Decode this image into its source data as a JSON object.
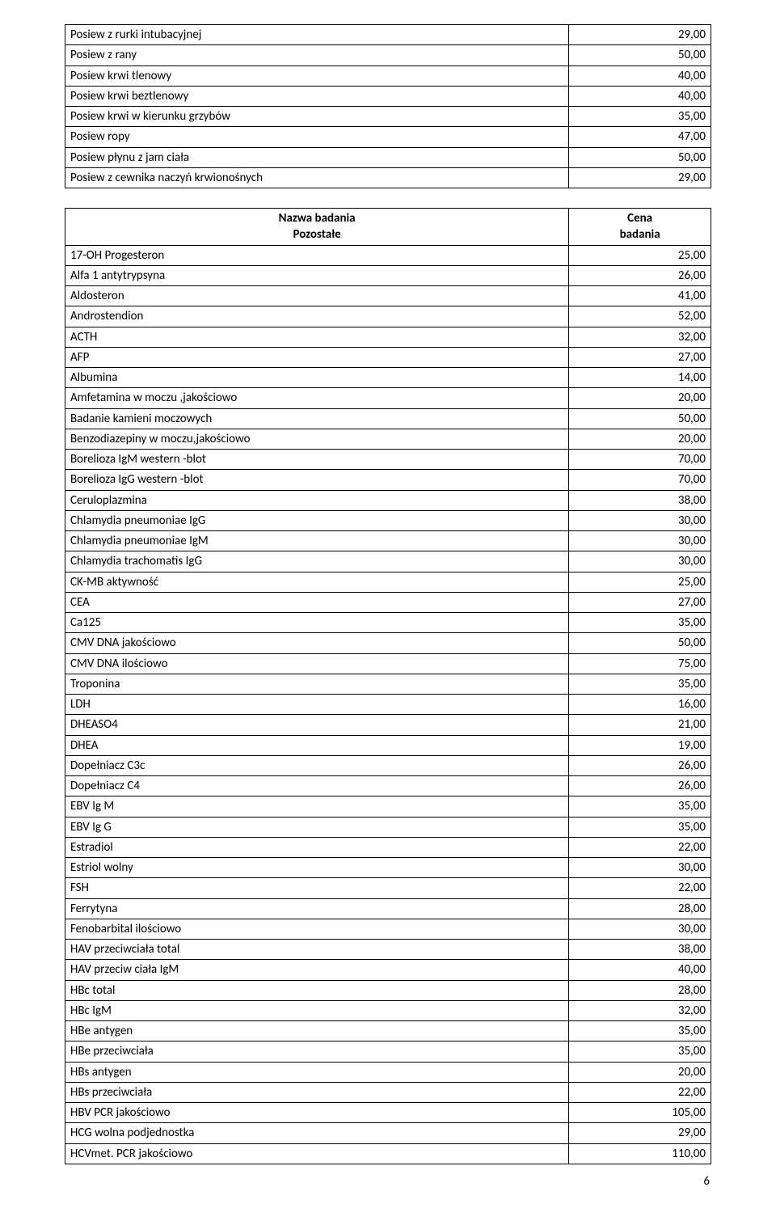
{
  "table1": {
    "rows": [
      {
        "name": "Posiew z rurki intubacyjnej",
        "value": "29,00"
      },
      {
        "name": "Posiew z rany",
        "value": "50,00"
      },
      {
        "name": "Posiew krwi tlenowy",
        "value": "40,00"
      },
      {
        "name": "Posiew krwi beztlenowy",
        "value": "40,00"
      },
      {
        "name": "Posiew krwi  w kierunku grzybów",
        "value": "35,00"
      },
      {
        "name": "Posiew ropy",
        "value": "47,00"
      },
      {
        "name": "Posiew płynu z jam ciała",
        "value": "50,00"
      },
      {
        "name": "Posiew z cewnika naczyń krwionośnych",
        "value": "29,00"
      }
    ]
  },
  "table2": {
    "header": {
      "name_line1": "Nazwa badania",
      "name_line2": "Pozostałe",
      "value_line1": "Cena",
      "value_line2": "badania"
    },
    "rows": [
      {
        "name": "17-OH Progesteron",
        "value": "25,00"
      },
      {
        "name": "Alfa 1 antytrypsyna",
        "value": "26,00"
      },
      {
        "name": "Aldosteron",
        "value": "41,00"
      },
      {
        "name": "Androstendion",
        "value": "52,00"
      },
      {
        "name": "ACTH",
        "value": "32,00"
      },
      {
        "name": "AFP",
        "value": "27,00"
      },
      {
        "name": "Albumina",
        "value": "14,00"
      },
      {
        "name": "Amfetamina w moczu ,jakościowo",
        "value": "20,00"
      },
      {
        "name": "Badanie kamieni moczowych",
        "value": "50,00"
      },
      {
        "name": "Benzodiazepiny w moczu,jakościowo",
        "value": "20,00"
      },
      {
        "name": "Borelioza IgM western -blot",
        "value": "70,00"
      },
      {
        "name": "Borelioza IgG western -blot",
        "value": "70,00"
      },
      {
        "name": "Ceruloplazmina",
        "value": "38,00"
      },
      {
        "name": "Chlamydia pneumoniae IgG",
        "value": "30,00"
      },
      {
        "name": "Chlamydia pneumoniae IgM",
        "value": "30,00"
      },
      {
        "name": "Chlamydia trachomatis IgG",
        "value": "30,00"
      },
      {
        "name": "CK-MB aktywność",
        "value": "25,00"
      },
      {
        "name": "CEA",
        "value": "27,00"
      },
      {
        "name": "Ca125",
        "value": "35,00"
      },
      {
        "name": "CMV DNA jakościowo",
        "value": "50,00"
      },
      {
        "name": "CMV DNA ilościowo",
        "value": "75,00"
      },
      {
        "name": "Troponina",
        "value": "35,00"
      },
      {
        "name": "LDH",
        "value": "16,00"
      },
      {
        "name": "DHEASO4",
        "value": "21,00"
      },
      {
        "name": "DHEA",
        "value": "19,00"
      },
      {
        "name": "Dopełniacz C3c",
        "value": "26,00"
      },
      {
        "name": "Dopełniacz C4",
        "value": "26,00"
      },
      {
        "name": "EBV Ig M",
        "value": "35,00"
      },
      {
        "name": "EBV Ig G",
        "value": "35,00"
      },
      {
        "name": "Estradiol",
        "value": "22,00"
      },
      {
        "name": "Estriol wolny",
        "value": "30,00"
      },
      {
        "name": "FSH",
        "value": "22,00"
      },
      {
        "name": "Ferrytyna",
        "value": "28,00"
      },
      {
        "name": "Fenobarbital ilościowo",
        "value": "30,00"
      },
      {
        "name": "HAV przeciwciała total",
        "value": "38,00"
      },
      {
        "name": "HAV przeciw ciała IgM",
        "value": "40,00"
      },
      {
        "name": "HBc total",
        "value": "28,00"
      },
      {
        "name": "HBc IgM",
        "value": "32,00"
      },
      {
        "name": "HBe antygen",
        "value": "35,00"
      },
      {
        "name": "HBe przeciwciała",
        "value": "35,00"
      },
      {
        "name": "HBs antygen",
        "value": "20,00"
      },
      {
        "name": "HBs przeciwciała",
        "value": "22,00"
      },
      {
        "name": "HBV PCR jakościowo",
        "value": "105,00"
      },
      {
        "name": "HCG wolna podjednostka",
        "value": "29,00"
      },
      {
        "name": "HCVmet. PCR jakościowo",
        "value": "110,00"
      }
    ]
  },
  "page_number": "6"
}
